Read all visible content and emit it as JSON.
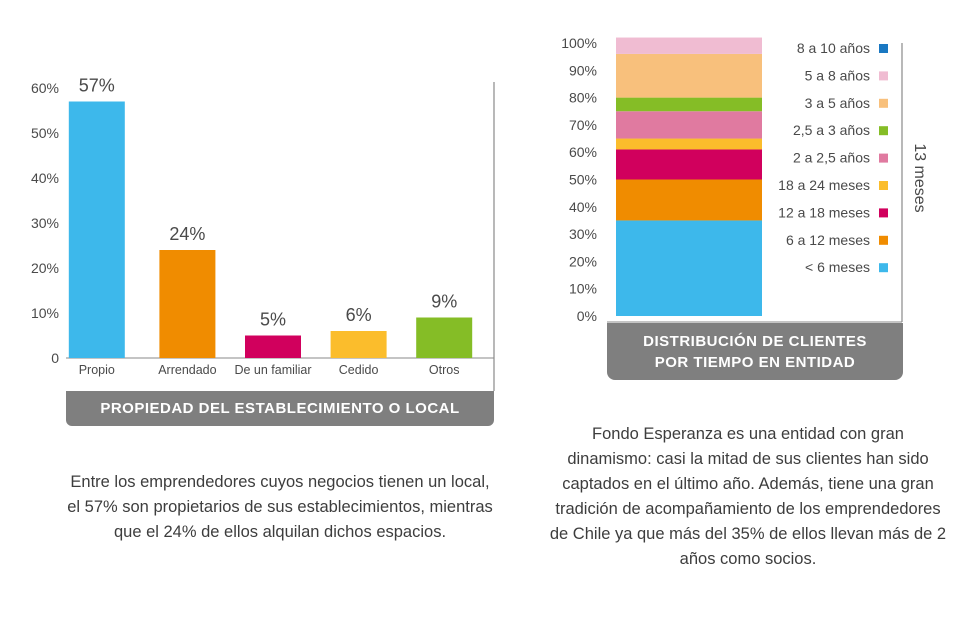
{
  "chart_data": [
    {
      "type": "bar",
      "title": "PROPIEDAD DEL ESTABLECIMIENTO O LOCAL",
      "categories": [
        "Propio",
        "Arrendado",
        "De un familiar",
        "Cedido",
        "Otros"
      ],
      "values": [
        57,
        24,
        5,
        6,
        9
      ],
      "data_labels": [
        "57%",
        "24%",
        "5%",
        "6%",
        "9%"
      ],
      "colors": [
        "#3db8eb",
        "#f08c00",
        "#d1005d",
        "#fbbd2c",
        "#85bd26"
      ],
      "y_ticks": [
        "0",
        "10%",
        "20%",
        "30%",
        "40%",
        "50%",
        "60%"
      ],
      "ylim": [
        0,
        60
      ],
      "grid": false
    },
    {
      "type": "bar",
      "stacked": true,
      "title": "DISTRIBUCIÓN DE CLIENTES POR TIEMPO EN ENTIDAD",
      "title_lines": [
        "DISTRIBUCIÓN DE CLIENTES",
        "POR TIEMPO EN ENTIDAD"
      ],
      "series": [
        {
          "name": "< 6 meses",
          "value": 35,
          "color": "#3db8eb"
        },
        {
          "name": "6 a 12 meses",
          "value": 15,
          "color": "#f08c00"
        },
        {
          "name": "12 a 18 meses",
          "value": 11,
          "color": "#d1005d"
        },
        {
          "name": "18 a 24 meses",
          "value": 4,
          "color": "#fbbd2c"
        },
        {
          "name": "2 a 2,5 años",
          "value": 10,
          "color": "#e07aa0"
        },
        {
          "name": "2,5 a 3 años",
          "value": 5,
          "color": "#85bd26"
        },
        {
          "name": "3 a 5 años",
          "value": 16,
          "color": "#f8c07c"
        },
        {
          "name": "5 a 8 años",
          "value": 6,
          "color": "#f0bcd2"
        },
        {
          "name": "8 a 10 años",
          "value": 0,
          "color": "#1a78c2"
        }
      ],
      "y_ticks": [
        "0%",
        "10%",
        "20%",
        "30%",
        "40%",
        "50%",
        "60%",
        "70%",
        "80%",
        "90%",
        "100%"
      ],
      "ylim": [
        0,
        100
      ],
      "bracket_label": "13 meses",
      "legend_position": "right",
      "grid": false
    }
  ],
  "captions": {
    "left": "Entre los emprendedores cuyos negocios tienen un local, el  57% son propietarios de sus establecimientos, mientras que el 24% de ellos alquilan dichos espacios.",
    "right": "Fondo Esperanza es una entidad con gran dinamismo: casi la mitad de sus clientes han sido captados en el último año. Además, tiene una gran tradición de acompañamiento de los emprendedores de Chile ya que más del 35% de ellos llevan más de 2 años como socios."
  }
}
